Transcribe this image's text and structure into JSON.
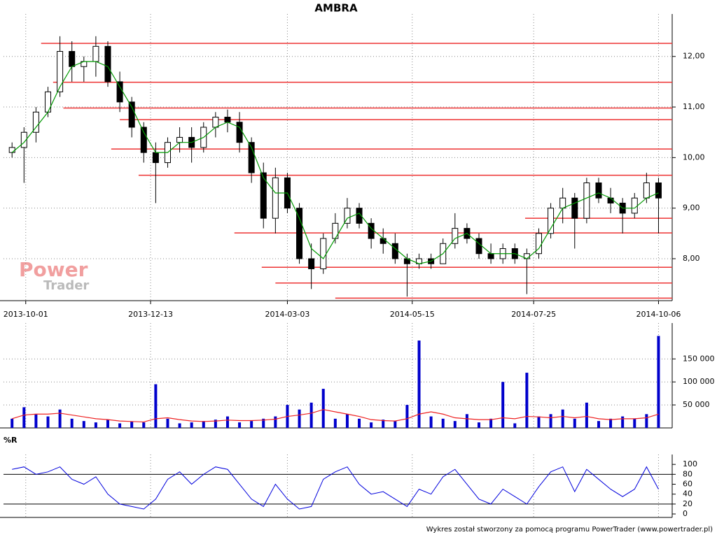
{
  "chart_data": [
    {
      "type": "candlestick",
      "title": "AMBRA",
      "logo": {
        "line1": "Power",
        "line2": "Trader"
      },
      "x": [
        "2013-09-23",
        "2013-09-30",
        "2013-10-07",
        "2013-10-14",
        "2013-10-21",
        "2013-10-28",
        "2013-11-04",
        "2013-11-11",
        "2013-11-18",
        "2013-11-25",
        "2013-12-02",
        "2013-12-09",
        "2013-12-16",
        "2013-12-23",
        "2013-12-30",
        "2014-01-06",
        "2014-01-13",
        "2014-01-20",
        "2014-01-27",
        "2014-02-03",
        "2014-02-10",
        "2014-02-17",
        "2014-02-24",
        "2014-03-03",
        "2014-03-10",
        "2014-03-17",
        "2014-03-24",
        "2014-03-31",
        "2014-04-07",
        "2014-04-14",
        "2014-04-21",
        "2014-04-28",
        "2014-05-05",
        "2014-05-12",
        "2014-05-19",
        "2014-05-26",
        "2014-06-02",
        "2014-06-09",
        "2014-06-16",
        "2014-06-23",
        "2014-06-30",
        "2014-07-07",
        "2014-07-14",
        "2014-07-21",
        "2014-07-28",
        "2014-08-04",
        "2014-08-11",
        "2014-08-18",
        "2014-08-25",
        "2014-09-01",
        "2014-09-08",
        "2014-09-15",
        "2014-09-22",
        "2014-09-29",
        "2014-10-06"
      ],
      "open": [
        10.1,
        10.2,
        10.5,
        10.9,
        11.3,
        12.1,
        11.8,
        11.9,
        12.2,
        11.5,
        11.1,
        10.6,
        10.1,
        9.9,
        10.3,
        10.4,
        10.2,
        10.6,
        10.8,
        10.7,
        10.3,
        9.7,
        8.8,
        9.6,
        9.0,
        8.0,
        7.8,
        8.4,
        8.7,
        9.0,
        8.7,
        8.4,
        8.3,
        8.0,
        7.9,
        8.0,
        7.9,
        8.3,
        8.6,
        8.4,
        8.1,
        8.0,
        8.2,
        8.0,
        8.1,
        8.5,
        9.0,
        9.2,
        8.8,
        9.5,
        9.2,
        9.1,
        8.9,
        9.2,
        9.5
      ],
      "high": [
        10.3,
        10.6,
        11.0,
        11.4,
        12.4,
        12.3,
        12.0,
        12.4,
        12.3,
        11.7,
        11.2,
        10.7,
        10.3,
        10.4,
        10.6,
        10.6,
        10.7,
        10.9,
        10.95,
        10.9,
        10.4,
        9.9,
        9.8,
        9.7,
        9.1,
        8.3,
        8.5,
        8.9,
        9.2,
        9.1,
        8.8,
        8.6,
        8.5,
        8.1,
        8.1,
        8.1,
        8.4,
        8.9,
        8.7,
        8.5,
        8.3,
        8.3,
        8.3,
        8.2,
        8.6,
        9.1,
        9.4,
        9.3,
        9.6,
        9.6,
        9.4,
        9.2,
        9.3,
        9.7,
        9.6
      ],
      "low": [
        10.0,
        9.5,
        10.3,
        10.8,
        11.2,
        11.5,
        11.5,
        11.6,
        11.4,
        10.9,
        10.4,
        9.9,
        9.1,
        9.8,
        10.1,
        9.9,
        10.1,
        10.4,
        10.5,
        10.1,
        9.5,
        8.6,
        8.5,
        8.9,
        7.9,
        7.4,
        7.7,
        8.3,
        8.6,
        8.6,
        8.2,
        8.1,
        7.9,
        7.25,
        7.8,
        7.8,
        7.9,
        8.2,
        8.3,
        8.0,
        7.9,
        7.9,
        7.9,
        7.3,
        8.0,
        8.4,
        8.7,
        8.2,
        8.7,
        9.1,
        8.9,
        8.5,
        8.8,
        9.1,
        8.5
      ],
      "close": [
        10.2,
        10.5,
        10.9,
        11.3,
        12.1,
        11.8,
        11.9,
        12.2,
        11.5,
        11.1,
        10.6,
        10.1,
        9.9,
        10.3,
        10.4,
        10.2,
        10.6,
        10.8,
        10.7,
        10.3,
        9.7,
        8.8,
        9.6,
        9.0,
        8.0,
        7.8,
        8.4,
        8.7,
        9.0,
        8.7,
        8.4,
        8.3,
        8.0,
        7.9,
        8.0,
        7.9,
        8.3,
        8.6,
        8.4,
        8.1,
        8.0,
        8.2,
        8.0,
        8.1,
        8.5,
        9.0,
        9.2,
        8.8,
        9.5,
        9.2,
        9.1,
        8.9,
        9.2,
        9.5,
        9.2
      ],
      "ma": {
        "color": "#009900",
        "values": [
          10.1,
          10.3,
          10.6,
          10.9,
          11.4,
          11.8,
          11.9,
          11.9,
          11.8,
          11.4,
          11.0,
          10.5,
          10.1,
          10.1,
          10.3,
          10.3,
          10.4,
          10.6,
          10.7,
          10.6,
          10.2,
          9.6,
          9.3,
          9.3,
          8.8,
          8.2,
          8.0,
          8.4,
          8.8,
          8.9,
          8.6,
          8.4,
          8.2,
          8.0,
          7.9,
          7.95,
          8.1,
          8.4,
          8.5,
          8.3,
          8.1,
          8.1,
          8.1,
          8.0,
          8.2,
          8.6,
          9.0,
          9.1,
          9.2,
          9.3,
          9.2,
          9.0,
          9.0,
          9.2,
          9.3
        ]
      },
      "levels": {
        "color": "#ee3333",
        "values": [
          12.26,
          11.49,
          10.98,
          10.75,
          10.17,
          9.65,
          8.8,
          8.51,
          7.83,
          7.52,
          7.22
        ],
        "start": [
          "2013-10-10",
          "2013-10-17",
          "2013-10-23",
          "2013-11-25",
          "2013-11-20",
          "2013-12-06",
          "2014-07-20",
          "2014-01-31",
          "2014-02-16",
          "2014-02-24",
          "2014-03-31"
        ]
      },
      "xlim": [
        "2013-09-18",
        "2014-10-14"
      ],
      "xticks": [
        "2013-10-01",
        "2013-12-13",
        "2014-03-03",
        "2014-05-15",
        "2014-07-25",
        "2014-10-06"
      ],
      "ylim": [
        7.17,
        12.84
      ],
      "yticks": [
        {
          "value": 8,
          "label": "8,00"
        },
        {
          "value": 9,
          "label": "9,00"
        },
        {
          "value": 10,
          "label": "10,00"
        },
        {
          "value": 11,
          "label": "11,00"
        },
        {
          "value": 12,
          "label": "12,00"
        }
      ],
      "grid": true
    },
    {
      "type": "bar",
      "color": "#0000cc",
      "values": [
        20000,
        45000,
        30000,
        25000,
        40000,
        20000,
        15000,
        12000,
        18000,
        10000,
        14000,
        12000,
        95000,
        20000,
        10000,
        12000,
        15000,
        18000,
        25000,
        12000,
        15000,
        20000,
        25000,
        50000,
        40000,
        55000,
        85000,
        20000,
        30000,
        20000,
        12000,
        18000,
        15000,
        50000,
        190000,
        25000,
        20000,
        15000,
        30000,
        12000,
        20000,
        100000,
        10000,
        120000,
        25000,
        30000,
        40000,
        20000,
        55000,
        15000,
        20000,
        25000,
        20000,
        30000,
        200000
      ],
      "average": {
        "color": "#ee2222",
        "values": [
          20000,
          28000,
          30000,
          30000,
          32000,
          28000,
          24000,
          20000,
          18000,
          15000,
          14000,
          13000,
          20000,
          22000,
          18000,
          15000,
          14000,
          15000,
          17000,
          16000,
          16000,
          17000,
          19000,
          25000,
          28000,
          32000,
          40000,
          35000,
          30000,
          25000,
          18000,
          16000,
          15000,
          20000,
          30000,
          35000,
          30000,
          22000,
          20000,
          18000,
          18000,
          22000,
          20000,
          25000,
          24000,
          22000,
          25000,
          22000,
          25000,
          20000,
          18000,
          20000,
          20000,
          22000,
          30000
        ]
      },
      "xlim": [
        "2013-09-18",
        "2014-10-14"
      ],
      "ylim": [
        0,
        228000
      ],
      "yticks": [
        {
          "value": 50000,
          "label": "50 000"
        },
        {
          "value": 100000,
          "label": "100 000"
        },
        {
          "value": 150000,
          "label": "150 000"
        }
      ],
      "grid": true
    },
    {
      "type": "line",
      "title": "%R",
      "color": "#0000dd",
      "values": [
        90,
        95,
        80,
        85,
        95,
        70,
        60,
        75,
        40,
        20,
        15,
        10,
        30,
        70,
        85,
        60,
        80,
        95,
        90,
        60,
        30,
        15,
        60,
        30,
        10,
        15,
        70,
        85,
        95,
        60,
        40,
        45,
        30,
        15,
        50,
        40,
        75,
        90,
        60,
        30,
        20,
        50,
        35,
        20,
        55,
        85,
        95,
        45,
        90,
        70,
        50,
        35,
        50,
        95,
        50
      ],
      "levels": [
        80,
        20
      ],
      "xlim": [
        "2013-09-18",
        "2014-10-14"
      ],
      "ylim": [
        -7,
        120
      ],
      "yticks": [
        0,
        20,
        40,
        60,
        80,
        100
      ],
      "grid": true
    }
  ],
  "footer": "Wykres został stworzony za pomocą programu PowerTrader (www.powertrader.pl)"
}
